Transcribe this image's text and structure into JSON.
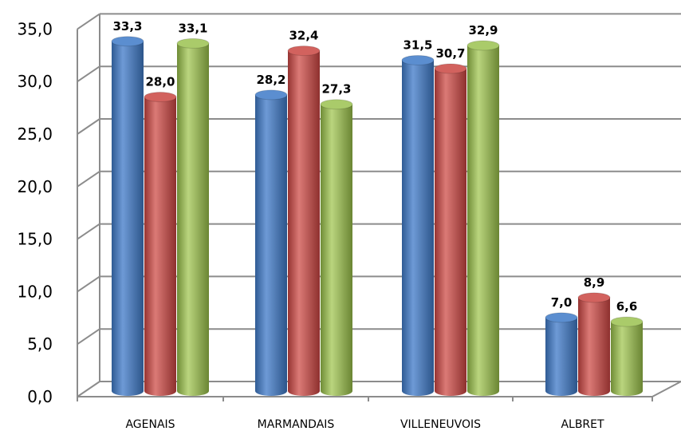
{
  "chart_data": {
    "type": "bar",
    "categories": [
      "AGENAIS",
      "MARMANDAIS",
      "VILLENEUVOIS",
      "ALBRET"
    ],
    "series": [
      {
        "values": [
          33.3,
          28.2,
          31.5,
          7.0
        ],
        "color": "#4F81BD"
      },
      {
        "values": [
          28.0,
          32.4,
          30.7,
          8.9
        ],
        "color": "#C0504D"
      },
      {
        "values": [
          33.1,
          27.3,
          32.9,
          6.6
        ],
        "color": "#9BBB59"
      }
    ],
    "data_labels": [
      [
        "33,3",
        "28,2",
        "31,5",
        "7,0"
      ],
      [
        "28,0",
        "32,4",
        "30,7",
        "8,9"
      ],
      [
        "33,1",
        "27,3",
        "32,9",
        "6,6"
      ]
    ],
    "y_ticks": [
      "0,0",
      "5,0",
      "10,0",
      "15,0",
      "20,0",
      "25,0",
      "30,0",
      "35,0"
    ],
    "ylim": [
      0,
      35
    ],
    "grid": true,
    "legend": "none",
    "style": "3d-cylinder"
  }
}
